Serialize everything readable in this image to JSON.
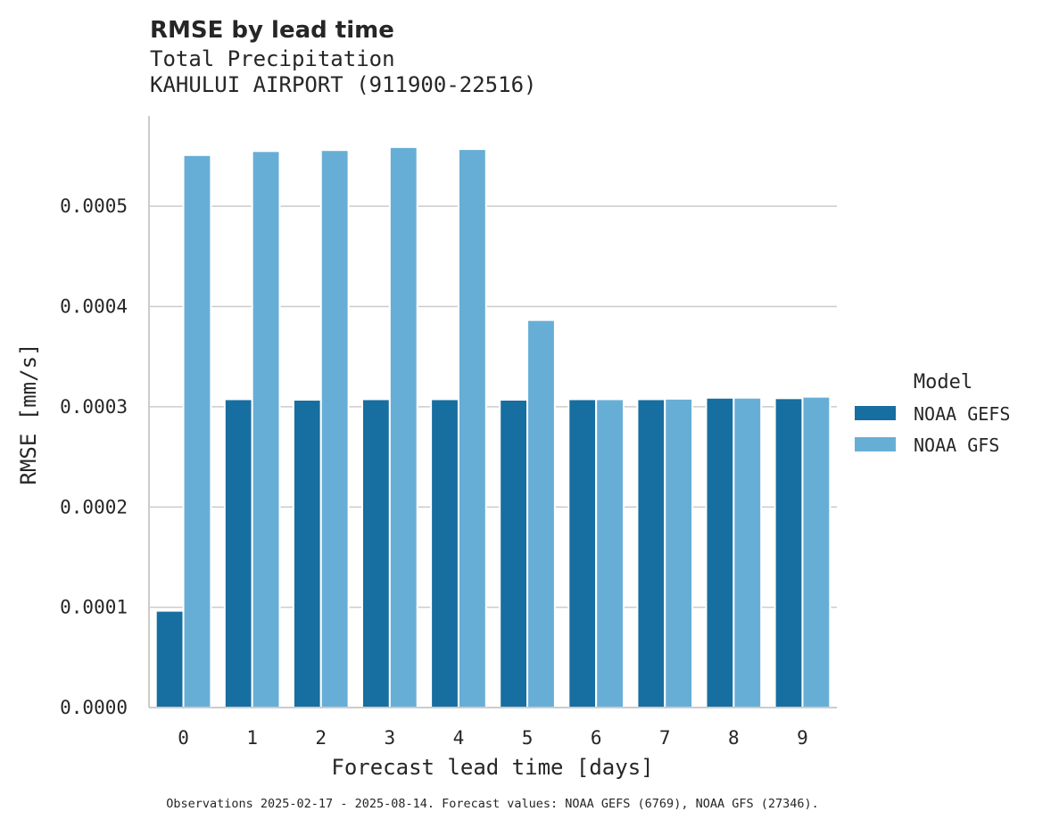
{
  "chart_data": {
    "type": "bar",
    "title": "RMSE by lead time",
    "subtitle_lines": [
      "Total Precipitation",
      "KAHULUI AIRPORT (911900-22516)"
    ],
    "xlabel": "Forecast lead time [days]",
    "ylabel": "RMSE [mm/s]",
    "categories": [
      "0",
      "1",
      "2",
      "3",
      "4",
      "5",
      "6",
      "7",
      "8",
      "9"
    ],
    "ylim": [
      0,
      0.00059
    ],
    "yticks": [
      "0.0000",
      "0.0001",
      "0.0002",
      "0.0003",
      "0.0004",
      "0.0005"
    ],
    "grid": "horizontal",
    "legend": {
      "title": "Model",
      "placement": "right"
    },
    "series": [
      {
        "name": "NOAA GEFS",
        "color": "#176ea0",
        "values": [
          9.65e-05,
          0.0003075,
          0.000307,
          0.0003075,
          0.0003075,
          0.000307,
          0.0003075,
          0.0003075,
          0.000309,
          0.0003085
        ]
      },
      {
        "name": "NOAA GFS",
        "color": "#67aed6",
        "values": [
          0.000551,
          0.000555,
          0.000556,
          0.000559,
          0.000557,
          0.0003865,
          0.0003075,
          0.000308,
          0.000309,
          0.00031
        ]
      }
    ],
    "footnote": "Observations 2025-02-17 - 2025-08-14. Forecast values: NOAA GEFS (6769), NOAA GFS (27346)."
  }
}
